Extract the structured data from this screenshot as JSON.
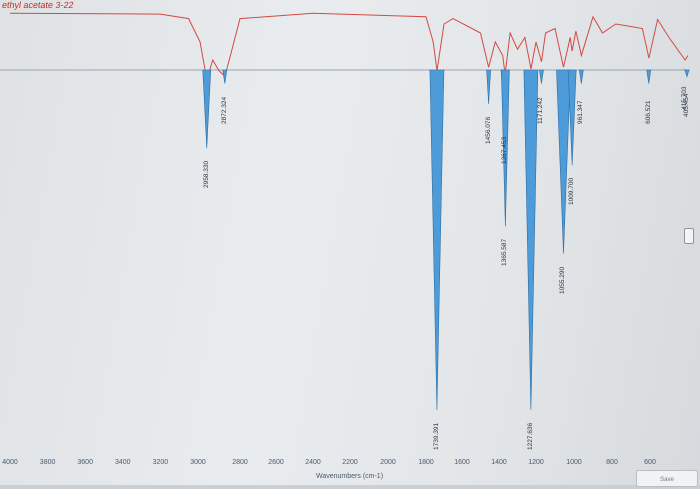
{
  "window": {
    "title": "ethyl acetate 3-22"
  },
  "x_axis": {
    "ticks": [
      "4000",
      "3800",
      "3600",
      "3400",
      "3200",
      "3000",
      "2800",
      "2600",
      "2400",
      "2200",
      "2000",
      "1800",
      "1600",
      "1400",
      "1200",
      "1000",
      "800",
      "600"
    ],
    "label": "Wavenumbers (cm-1)"
  },
  "peak_labels": [
    "2958.330",
    "2872.324",
    "1739.391",
    "1456.076",
    "1367.453",
    "1365.587",
    "1227.636",
    "1171.242",
    "1055.290",
    "1009.700",
    "961.347",
    "606.521",
    "415.703",
    "405.454"
  ],
  "corner_button": {
    "label": "Save"
  },
  "chart_data": {
    "type": "line",
    "title": "ethyl acetate 3-22",
    "xlabel": "Wavenumbers (cm-1)",
    "xlim": [
      4000,
      400
    ],
    "reversed_x": true,
    "series": [
      {
        "name": "",
        "color": "#d24a44",
        "points": [
          [
            4000,
            8
          ],
          [
            3200,
            9
          ],
          [
            3050,
            14
          ],
          [
            2990,
            40
          ],
          [
            2958,
            82
          ],
          [
            2930,
            60
          ],
          [
            2900,
            72
          ],
          [
            2872,
            78
          ],
          [
            2840,
            50
          ],
          [
            2800,
            14
          ],
          [
            2400,
            8
          ],
          [
            1800,
            12
          ],
          [
            1760,
            40
          ],
          [
            1739,
            72
          ],
          [
            1700,
            20
          ],
          [
            1650,
            14
          ],
          [
            1500,
            30
          ],
          [
            1456,
            68
          ],
          [
            1420,
            40
          ],
          [
            1380,
            55
          ],
          [
            1367,
            76
          ],
          [
            1340,
            30
          ],
          [
            1300,
            48
          ],
          [
            1260,
            35
          ],
          [
            1227,
            70
          ],
          [
            1200,
            40
          ],
          [
            1171,
            62
          ],
          [
            1150,
            30
          ],
          [
            1100,
            25
          ],
          [
            1055,
            68
          ],
          [
            1020,
            35
          ],
          [
            1010,
            50
          ],
          [
            990,
            28
          ],
          [
            961,
            55
          ],
          [
            900,
            12
          ],
          [
            850,
            30
          ],
          [
            780,
            20
          ],
          [
            640,
            25
          ],
          [
            606,
            58
          ],
          [
            560,
            15
          ],
          [
            500,
            35
          ],
          [
            415,
            60
          ],
          [
            400,
            55
          ]
        ]
      }
    ],
    "peaks": [
      {
        "wavenumber": 2958.33,
        "depth_fraction": 0.23
      },
      {
        "wavenumber": 2872.324,
        "depth_fraction": 0.04
      },
      {
        "wavenumber": 1739.391,
        "depth_fraction": 1.0
      },
      {
        "wavenumber": 1456.076,
        "depth_fraction": 0.1
      },
      {
        "wavenumber": 1367.453,
        "depth_fraction": 0.16
      },
      {
        "wavenumber": 1365.587,
        "depth_fraction": 0.46
      },
      {
        "wavenumber": 1227.636,
        "depth_fraction": 1.0
      },
      {
        "wavenumber": 1171.242,
        "depth_fraction": 0.04
      },
      {
        "wavenumber": 1055.29,
        "depth_fraction": 0.54
      },
      {
        "wavenumber": 1009.7,
        "depth_fraction": 0.28
      },
      {
        "wavenumber": 961.347,
        "depth_fraction": 0.04
      },
      {
        "wavenumber": 606.521,
        "depth_fraction": 0.04
      },
      {
        "wavenumber": 415.703,
        "depth_fraction": 0.0
      },
      {
        "wavenumber": 405.454,
        "depth_fraction": 0.02
      }
    ]
  }
}
